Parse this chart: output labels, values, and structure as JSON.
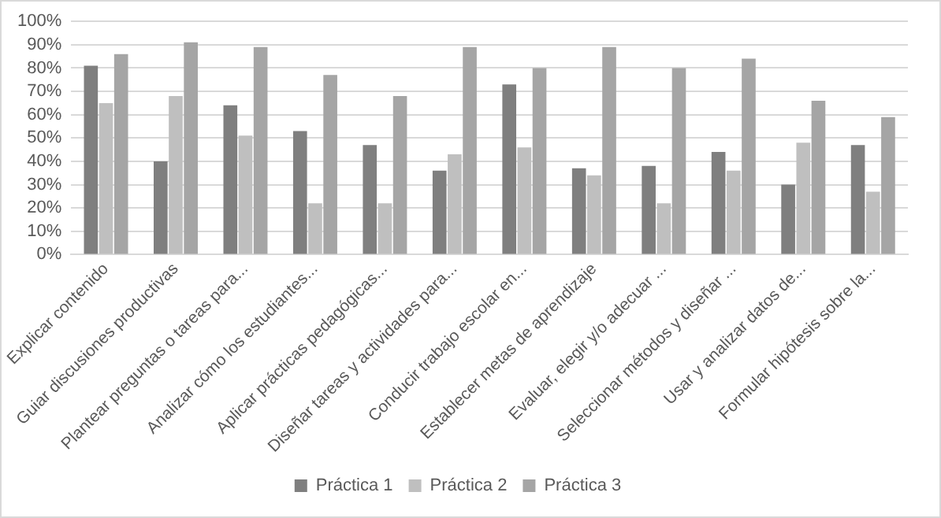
{
  "chart_data": {
    "type": "bar",
    "categories": [
      "Explicar contenido",
      "Guiar discusiones productivas",
      "Plantear preguntas o tareas para...",
      "Analizar cómo los estudiantes...",
      "Aplicar prácticas pedagógicas...",
      "Diseñar tareas y actividades para...",
      "Conducir trabajo escolar en...",
      "Establecer metas de aprendizaje",
      "Evaluar, elegir y/o adecuar ...",
      "Seleccionar métodos y diseñar ...",
      "Usar y analizar datos de...",
      "Formular hipótesis sobre la..."
    ],
    "series": [
      {
        "name": "Práctica 1",
        "color": "#7f7f7f",
        "values": [
          81,
          40,
          64,
          53,
          47,
          36,
          73,
          37,
          38,
          44,
          30,
          47
        ]
      },
      {
        "name": "Práctica 2",
        "color": "#bfbfbf",
        "values": [
          65,
          68,
          51,
          22,
          22,
          43,
          46,
          34,
          22,
          36,
          48,
          27
        ]
      },
      {
        "name": "Práctica 3",
        "color": "#a5a5a5",
        "values": [
          86,
          91,
          89,
          77,
          68,
          89,
          80,
          89,
          80,
          84,
          66,
          59
        ]
      }
    ],
    "ylim": [
      0,
      100
    ],
    "yticks": [
      {
        "value": 0,
        "label": "0%"
      },
      {
        "value": 10,
        "label": "10%"
      },
      {
        "value": 20,
        "label": "20%"
      },
      {
        "value": 30,
        "label": "30%"
      },
      {
        "value": 40,
        "label": "40%"
      },
      {
        "value": 50,
        "label": "50%"
      },
      {
        "value": 60,
        "label": "60%"
      },
      {
        "value": 70,
        "label": "70%"
      },
      {
        "value": 80,
        "label": "80%"
      },
      {
        "value": 90,
        "label": "90%"
      },
      {
        "value": 100,
        "label": "100%"
      }
    ],
    "grid": "y",
    "legend": "bottom"
  }
}
